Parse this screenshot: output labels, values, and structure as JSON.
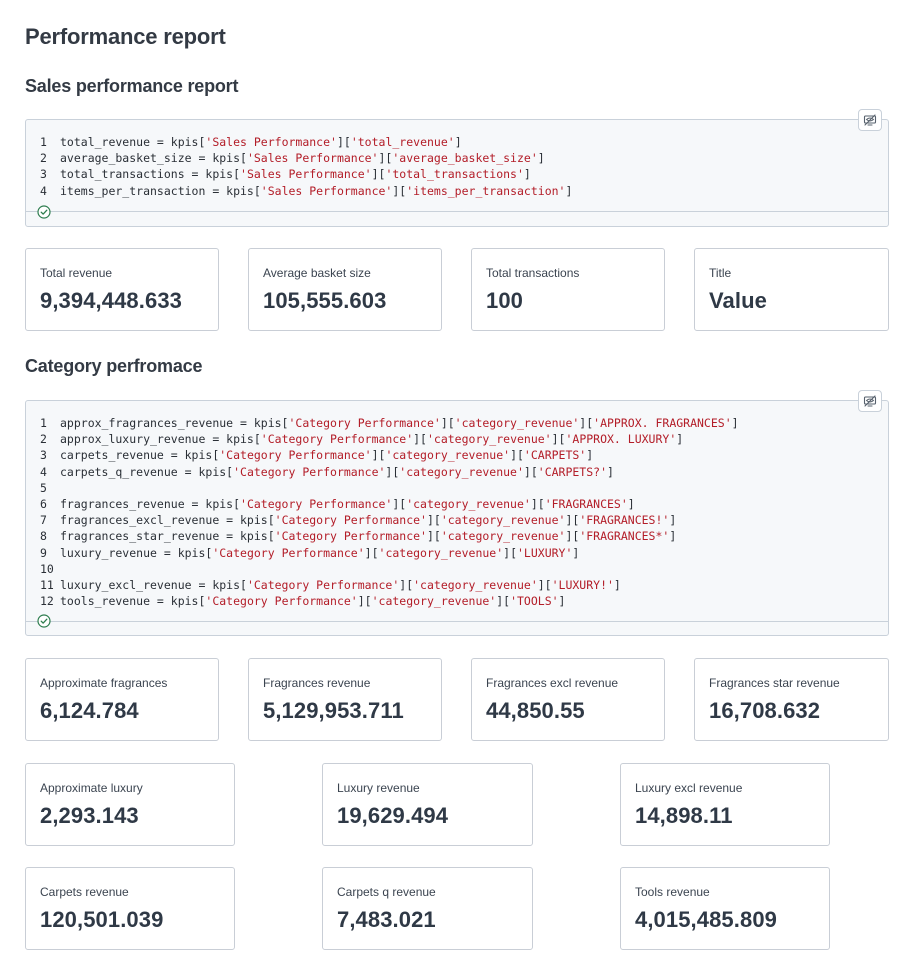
{
  "page": {
    "title": "Performance report"
  },
  "sections": {
    "sales": {
      "title": "Sales performance report",
      "code": [
        {
          "n": "1",
          "parts": [
            {
              "t": "total_revenue = kpis["
            },
            {
              "t": "'Sales Performance'",
              "s": true
            },
            {
              "t": "]["
            },
            {
              "t": "'total_revenue'",
              "s": true
            },
            {
              "t": "]"
            }
          ]
        },
        {
          "n": "2",
          "parts": [
            {
              "t": "average_basket_size = kpis["
            },
            {
              "t": "'Sales Performance'",
              "s": true
            },
            {
              "t": "]["
            },
            {
              "t": "'average_basket_size'",
              "s": true
            },
            {
              "t": "]"
            }
          ]
        },
        {
          "n": "3",
          "parts": [
            {
              "t": "total_transactions = kpis["
            },
            {
              "t": "'Sales Performance'",
              "s": true
            },
            {
              "t": "]["
            },
            {
              "t": "'total_transactions'",
              "s": true
            },
            {
              "t": "]"
            }
          ]
        },
        {
          "n": "4",
          "parts": [
            {
              "t": "items_per_transaction = kpis["
            },
            {
              "t": "'Sales Performance'",
              "s": true
            },
            {
              "t": "]["
            },
            {
              "t": "'items_per_transaction'",
              "s": true
            },
            {
              "t": "]"
            }
          ]
        }
      ],
      "kpis": [
        {
          "title": "Total revenue",
          "value": "9,394,448.633"
        },
        {
          "title": "Average basket size",
          "value": "105,555.603"
        },
        {
          "title": "Total transactions",
          "value": "100"
        },
        {
          "title": "Title",
          "value": "Value"
        }
      ]
    },
    "category": {
      "title": "Category perfromace",
      "code": [
        {
          "n": "1",
          "parts": [
            {
              "t": "approx_fragrances_revenue = kpis["
            },
            {
              "t": "'Category Performance'",
              "s": true
            },
            {
              "t": "]["
            },
            {
              "t": "'category_revenue'",
              "s": true
            },
            {
              "t": "]["
            },
            {
              "t": "'APPROX. FRAGRANCES'",
              "s": true
            },
            {
              "t": "]"
            }
          ]
        },
        {
          "n": "2",
          "parts": [
            {
              "t": "approx_luxury_revenue = kpis["
            },
            {
              "t": "'Category Performance'",
              "s": true
            },
            {
              "t": "]["
            },
            {
              "t": "'category_revenue'",
              "s": true
            },
            {
              "t": "]["
            },
            {
              "t": "'APPROX. LUXURY'",
              "s": true
            },
            {
              "t": "]"
            }
          ]
        },
        {
          "n": "3",
          "parts": [
            {
              "t": "carpets_revenue = kpis["
            },
            {
              "t": "'Category Performance'",
              "s": true
            },
            {
              "t": "]["
            },
            {
              "t": "'category_revenue'",
              "s": true
            },
            {
              "t": "]["
            },
            {
              "t": "'CARPETS'",
              "s": true
            },
            {
              "t": "]"
            }
          ]
        },
        {
          "n": "4",
          "parts": [
            {
              "t": "carpets_q_revenue = kpis["
            },
            {
              "t": "'Category Performance'",
              "s": true
            },
            {
              "t": "]["
            },
            {
              "t": "'category_revenue'",
              "s": true
            },
            {
              "t": "]["
            },
            {
              "t": "'CARPETS?'",
              "s": true
            },
            {
              "t": "]"
            }
          ]
        },
        {
          "n": "5",
          "parts": []
        },
        {
          "n": "6",
          "parts": [
            {
              "t": "fragrances_revenue = kpis["
            },
            {
              "t": "'Category Performance'",
              "s": true
            },
            {
              "t": "]["
            },
            {
              "t": "'category_revenue'",
              "s": true
            },
            {
              "t": "]["
            },
            {
              "t": "'FRAGRANCES'",
              "s": true
            },
            {
              "t": "]"
            }
          ]
        },
        {
          "n": "7",
          "parts": [
            {
              "t": "fragrances_excl_revenue = kpis["
            },
            {
              "t": "'Category Performance'",
              "s": true
            },
            {
              "t": "]["
            },
            {
              "t": "'category_revenue'",
              "s": true
            },
            {
              "t": "]["
            },
            {
              "t": "'FRAGRANCES!'",
              "s": true
            },
            {
              "t": "]"
            }
          ]
        },
        {
          "n": "8",
          "parts": [
            {
              "t": "fragrances_star_revenue = kpis["
            },
            {
              "t": "'Category Performance'",
              "s": true
            },
            {
              "t": "]["
            },
            {
              "t": "'category_revenue'",
              "s": true
            },
            {
              "t": "]["
            },
            {
              "t": "'FRAGRANCES*'",
              "s": true
            },
            {
              "t": "]"
            }
          ]
        },
        {
          "n": "9",
          "parts": [
            {
              "t": "luxury_revenue = kpis["
            },
            {
              "t": "'Category Performance'",
              "s": true
            },
            {
              "t": "]["
            },
            {
              "t": "'category_revenue'",
              "s": true
            },
            {
              "t": "]["
            },
            {
              "t": "'LUXURY'",
              "s": true
            },
            {
              "t": "]"
            }
          ]
        },
        {
          "n": "10",
          "parts": []
        },
        {
          "n": "11",
          "parts": [
            {
              "t": "luxury_excl_revenue = kpis["
            },
            {
              "t": "'Category Performance'",
              "s": true
            },
            {
              "t": "]["
            },
            {
              "t": "'category_revenue'",
              "s": true
            },
            {
              "t": "]["
            },
            {
              "t": "'LUXURY!'",
              "s": true
            },
            {
              "t": "]"
            }
          ]
        },
        {
          "n": "12",
          "parts": [
            {
              "t": "tools_revenue = kpis["
            },
            {
              "t": "'Category Performance'",
              "s": true
            },
            {
              "t": "]["
            },
            {
              "t": "'category_revenue'",
              "s": true
            },
            {
              "t": "]["
            },
            {
              "t": "'TOOLS'",
              "s": true
            },
            {
              "t": "]"
            }
          ]
        }
      ],
      "kpis_row1": [
        {
          "title": "Approximate fragrances",
          "value": "6,124.784"
        },
        {
          "title": "Fragrances revenue",
          "value": "5,129,953.711"
        },
        {
          "title": "Fragrances excl revenue",
          "value": "44,850.55"
        },
        {
          "title": "Fragrances star revenue",
          "value": "16,708.632"
        }
      ],
      "kpis_row2": [
        {
          "title": "Approximate luxury",
          "value": "2,293.143"
        },
        {
          "title": "Luxury revenue",
          "value": "19,629.494"
        },
        {
          "title": "Luxury excl revenue",
          "value": "14,898.11"
        }
      ],
      "kpis_row3": [
        {
          "title": "Carpets revenue",
          "value": "120,501.039"
        },
        {
          "title": "Carpets q revenue",
          "value": "7,483.021"
        },
        {
          "title": "Tools revenue",
          "value": "4,015,485.809"
        }
      ]
    }
  },
  "icons": {
    "status": "check-circle-icon",
    "hide": "eye-off-icon"
  },
  "colors": {
    "string": "#b31d28",
    "status_ok": "#2e7d4f"
  }
}
